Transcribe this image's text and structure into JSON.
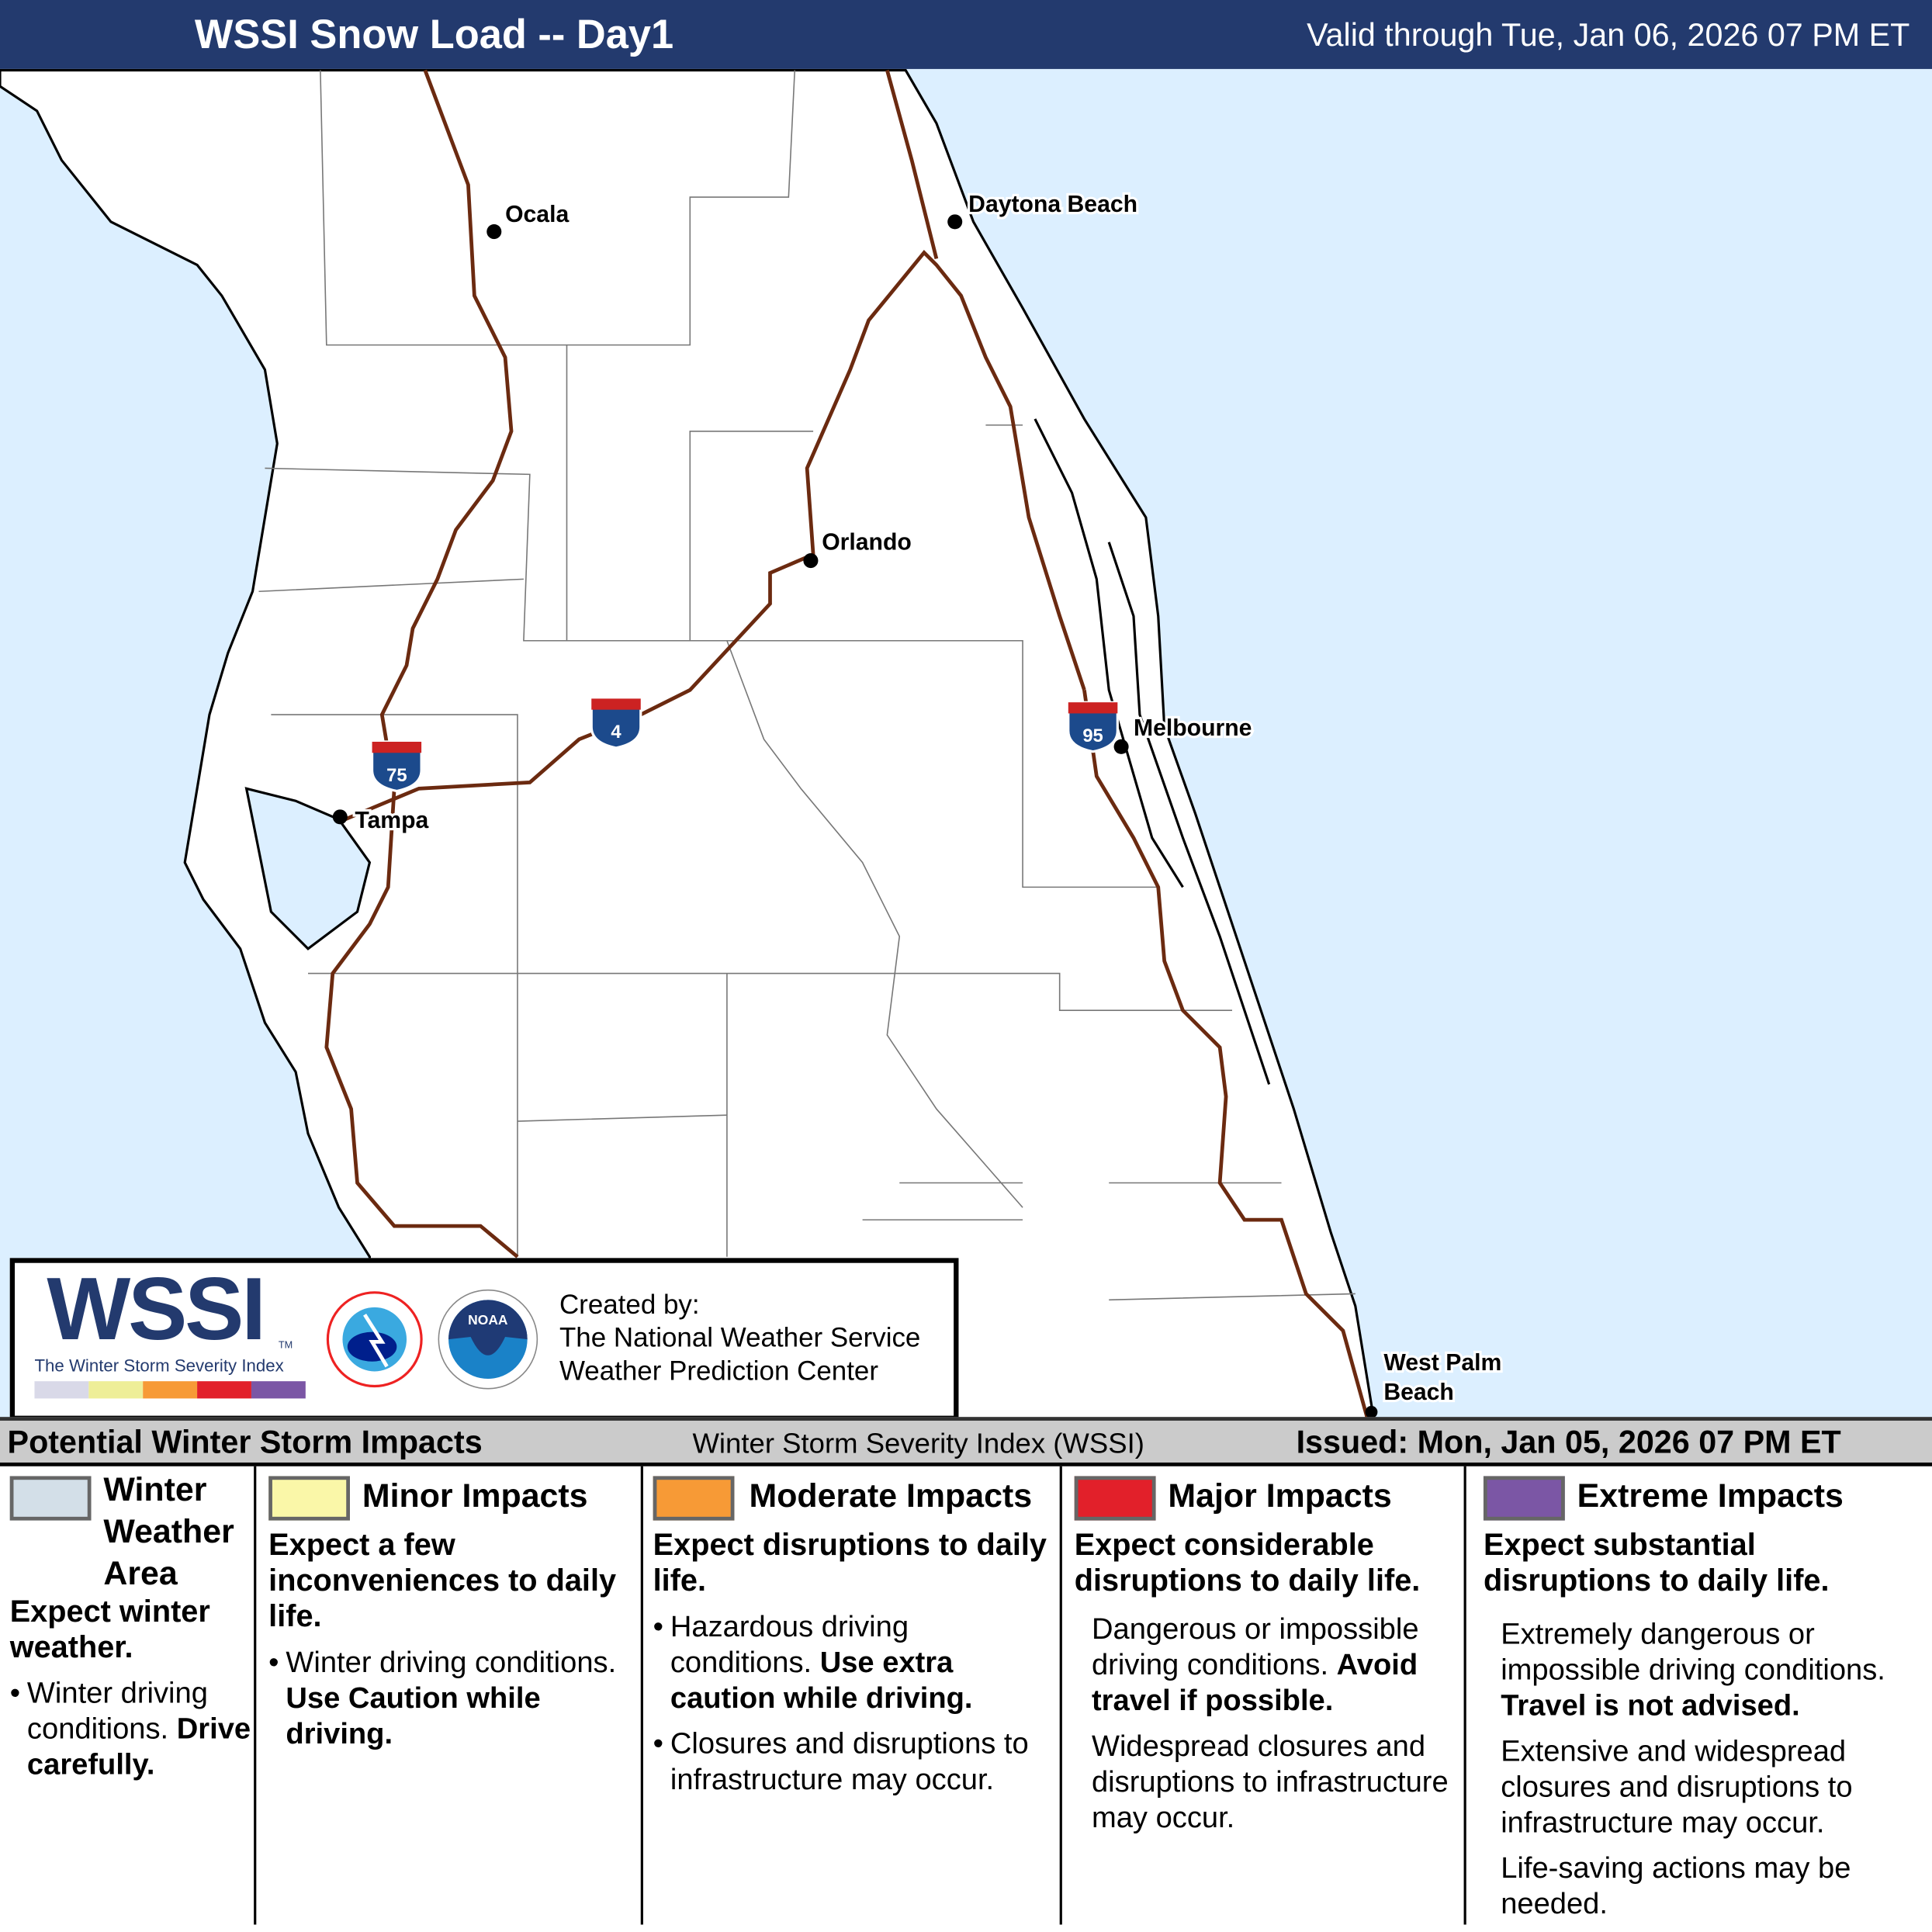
{
  "header": {
    "title": "WSSI Snow Load -- Day1",
    "valid": "Valid through Tue, Jan 06, 2026 07 PM ET"
  },
  "map": {
    "water_color": "#dcefff",
    "land_color": "#ffffff",
    "highway_color": "#6b2a10",
    "cities": [
      {
        "name": "Ocala"
      },
      {
        "name": "Daytona Beach"
      },
      {
        "name": "Orlando"
      },
      {
        "name": "Melbourne"
      },
      {
        "name": "Tampa"
      },
      {
        "name": "West Palm"
      },
      {
        "name": "Beach"
      }
    ],
    "shields": [
      "75",
      "4",
      "95"
    ]
  },
  "logo": {
    "wssi": "WSSI",
    "tm": "TM",
    "subtitle": "The Winter Storm Severity Index",
    "created_by": "Created by:",
    "org1": "The National Weather Service",
    "org2": "Weather Prediction Center",
    "bar_colors": [
      "#d9d9e8",
      "#eeee98",
      "#f79a36",
      "#e2202a",
      "#7b56a5"
    ],
    "nws_ring": "NATIONAL WEATHER SERVICE",
    "noaa": "NOAA"
  },
  "strip": {
    "left": "Potential Winter Storm Impacts",
    "center": "Winter Storm Severity Index (WSSI)",
    "right": "Issued: Mon, Jan 05, 2026 07 PM ET"
  },
  "legend": [
    {
      "title": "Winter Weather Area",
      "color": "#d3dfe8",
      "sub": "Expect winter weather.",
      "b1": "Winter driving conditions.",
      "b1bold": "Drive carefully."
    },
    {
      "title": "Minor Impacts",
      "color": "#faf7a8",
      "sub": "Expect a few inconveniences to daily life.",
      "b1": "Winter driving conditions.",
      "b1bold": "Use Caution while driving."
    },
    {
      "title": "Moderate Impacts",
      "color": "#f79a36",
      "sub": "Expect disruptions to daily life.",
      "b1": "Hazardous driving conditions.",
      "b1bold": "Use extra caution while driving.",
      "b2": "Closures and disruptions to infrastructure may occur."
    },
    {
      "title": "Major Impacts",
      "color": "#e2202a",
      "sub": "Expect considerable disruptions to daily life.",
      "b1": "Dangerous or impossible driving conditions.",
      "b1bold": "Avoid travel if possible.",
      "b2": "Widespread closures and disruptions to infrastructure may occur."
    },
    {
      "title": "Extreme Impacts",
      "color": "#7b56a5",
      "sub": "Expect substantial disruptions to daily life.",
      "b1": "Extremely dangerous or impossible driving conditions.",
      "b1bold": "Travel is not advised.",
      "b2": "Extensive and widespread closures and disruptions to infrastructure may occur.",
      "b3": "Life-saving actions may be needed."
    }
  ]
}
